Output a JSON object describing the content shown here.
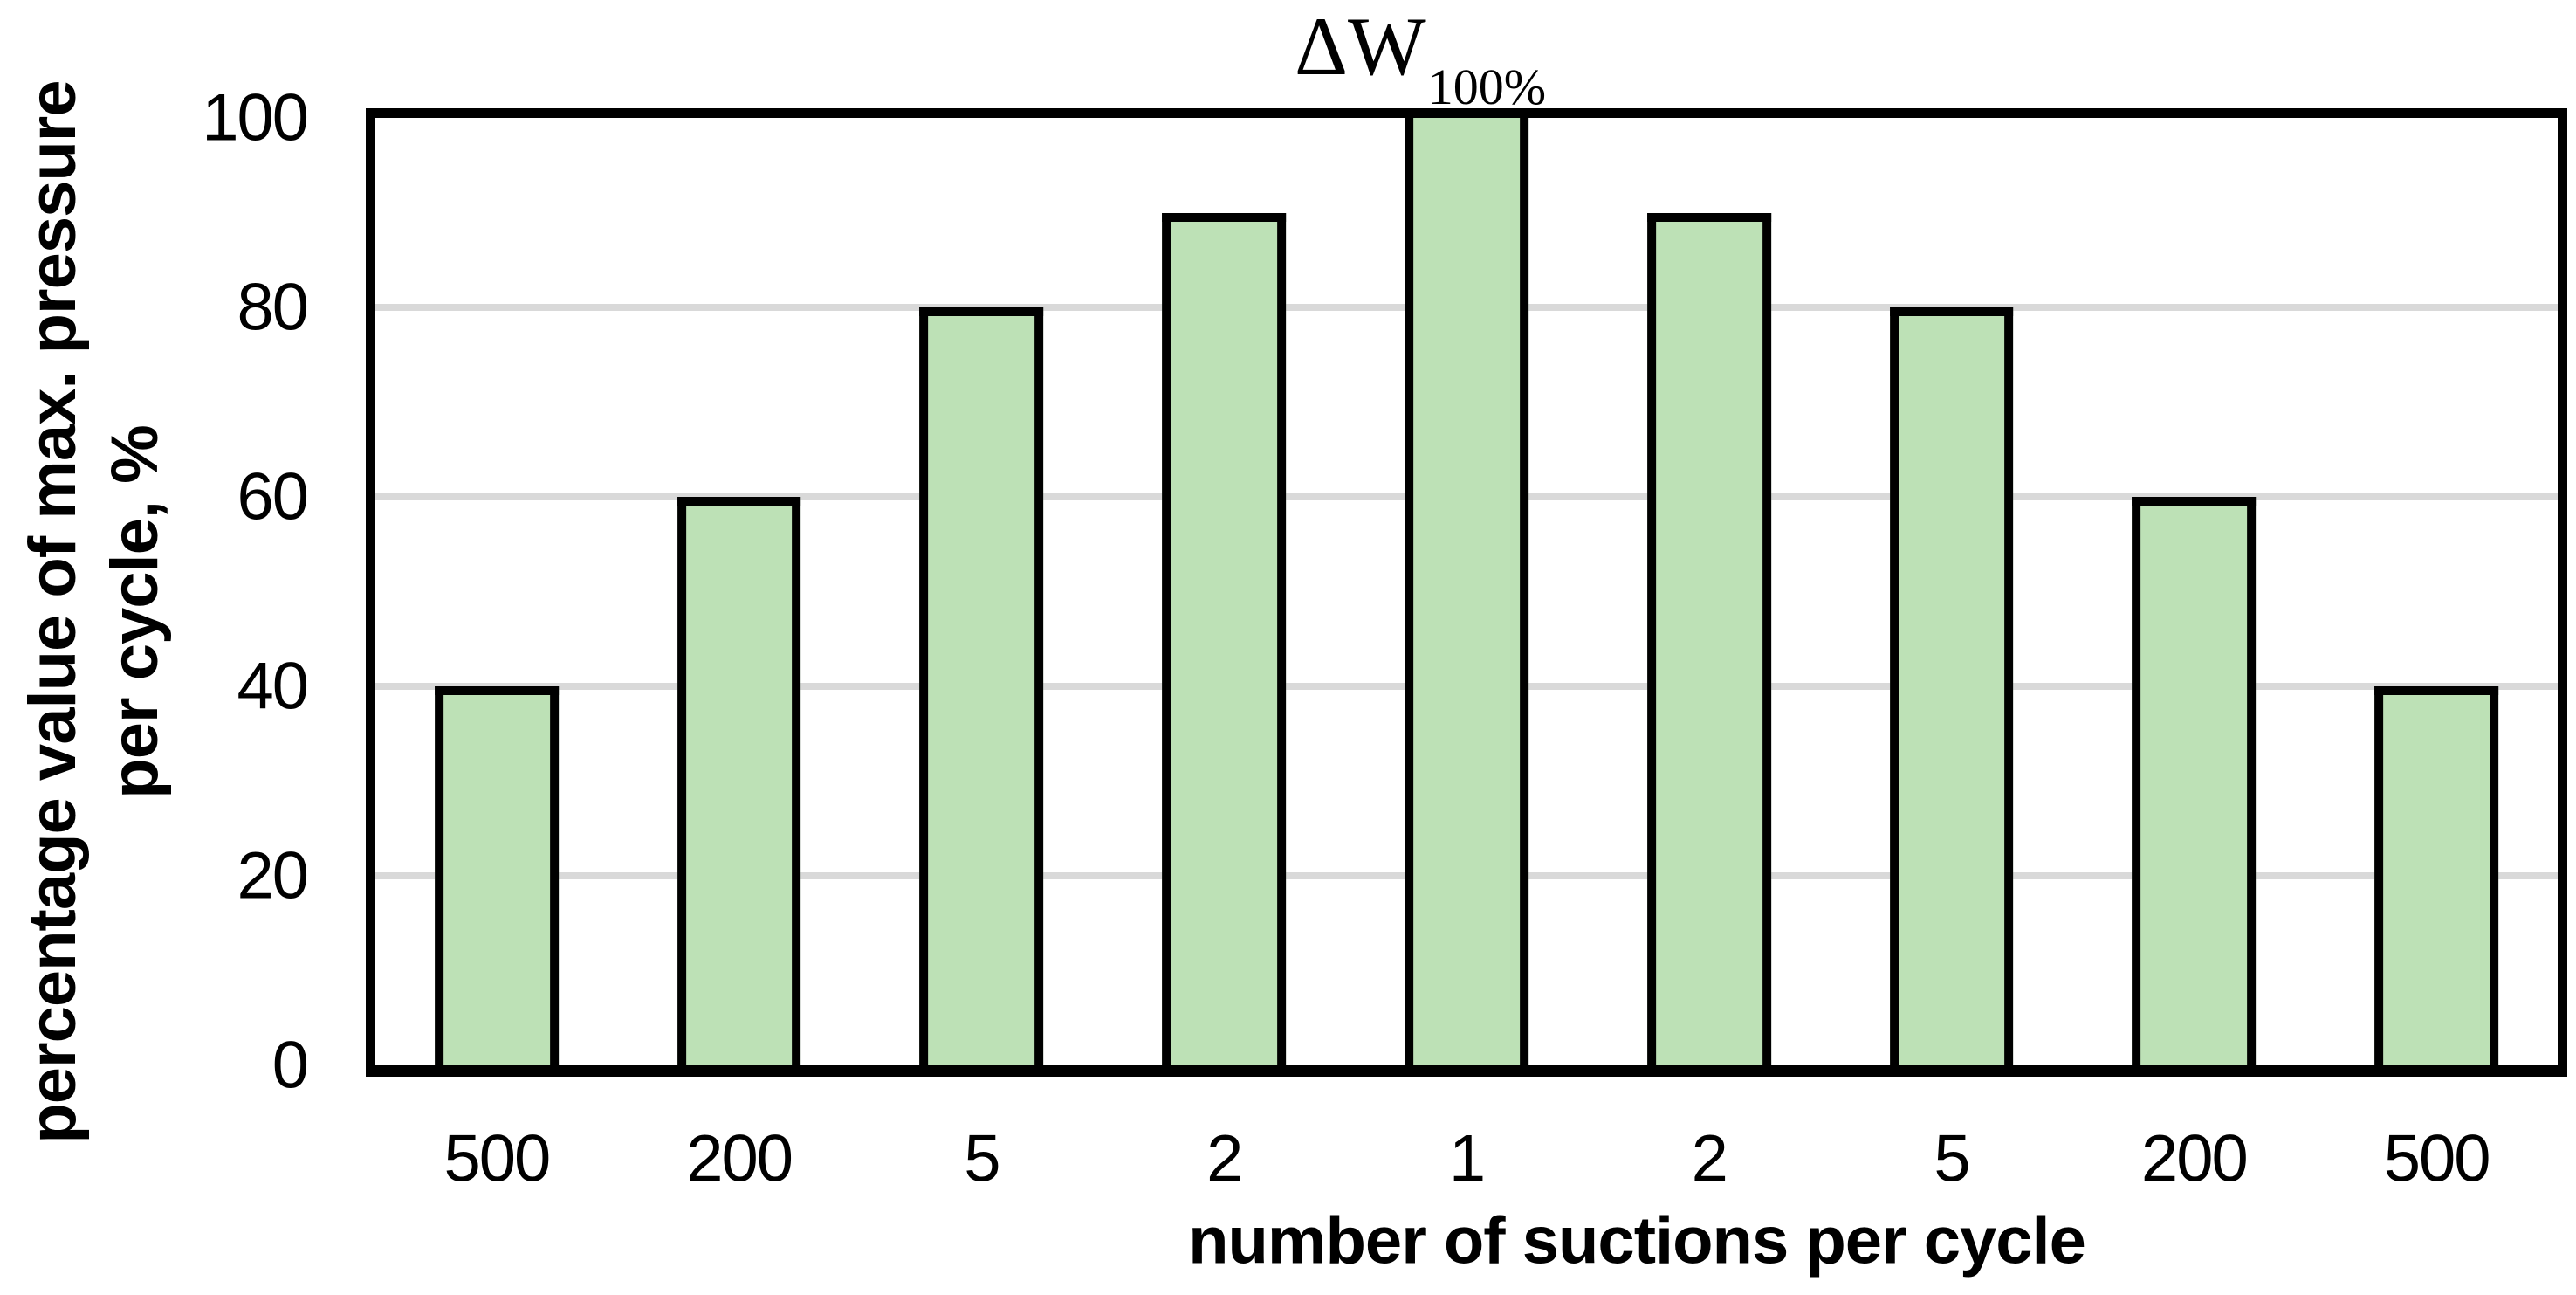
{
  "chart": {
    "title_main": "ΔW",
    "title_subscript": "100%",
    "x_axis_title": "number of suctions per cycle",
    "y_axis_title_line1": "percentage value of max. pressure",
    "y_axis_title_line2": "per cycle, %"
  },
  "chart_data": {
    "type": "bar",
    "title": "ΔW_100%",
    "categories": [
      "500",
      "200",
      "5",
      "2",
      "1",
      "2",
      "5",
      "200",
      "500"
    ],
    "values": [
      40,
      60,
      80,
      90,
      100,
      90,
      80,
      60,
      40
    ],
    "xlabel": "number of suctions per cycle",
    "ylabel": "percentage value of max. pressure per cycle, %",
    "ylim": [
      0,
      100
    ],
    "y_ticks": [
      0,
      20,
      40,
      60,
      80,
      100
    ],
    "gridlines": [
      20,
      40,
      60,
      80
    ],
    "grid": "horizontal-light-gray",
    "legend": "none",
    "bar_fill": "#BDE1B6",
    "bar_border": "#000000",
    "gridline_color": "#D9D9D9",
    "frame_color": "#000000",
    "background": "#FFFFFF"
  }
}
